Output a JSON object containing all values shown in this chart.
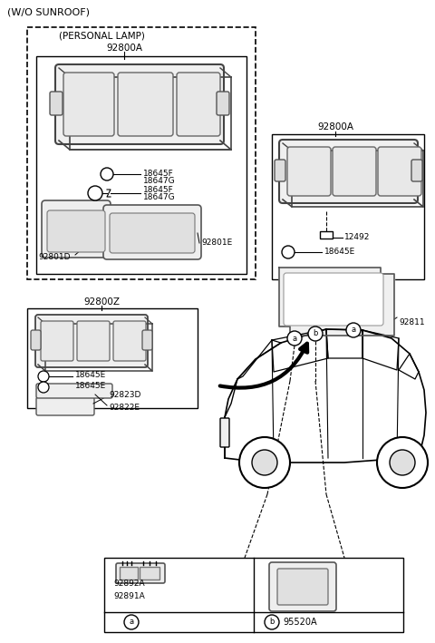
{
  "bg_color": "#ffffff",
  "lc": "#000000",
  "tc": "#000000",
  "title": "(W/O SUNROOF)",
  "personal_lamp": "(PERSONAL LAMP)",
  "part_92800A_1": "92800A",
  "part_92800A_2": "92800A",
  "part_92800Z": "92800Z",
  "label_18645F_1": "18645F",
  "label_18647G_1": "18647G",
  "label_18645F_2": "18645F",
  "label_18647G_2": "18647G",
  "label_92801E": "92801E",
  "label_92801D": "92801D",
  "label_12492": "12492",
  "label_18645E_r": "18645E",
  "label_92811": "92811",
  "label_18645E_m1": "18645E",
  "label_18645E_m2": "18645E",
  "label_92823D": "92823D",
  "label_92822E": "92822E",
  "label_92891A": "92891A",
  "label_92892A": "92892A",
  "label_95520A": "95520A"
}
